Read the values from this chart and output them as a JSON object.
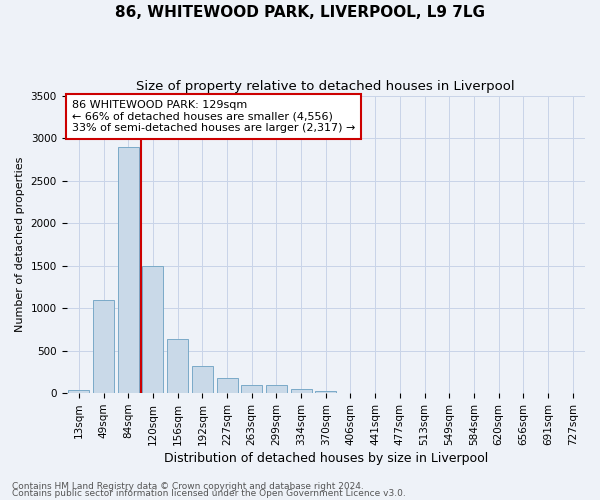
{
  "title": "86, WHITEWOOD PARK, LIVERPOOL, L9 7LG",
  "subtitle": "Size of property relative to detached houses in Liverpool",
  "xlabel": "Distribution of detached houses by size in Liverpool",
  "ylabel": "Number of detached properties",
  "footnote1": "Contains HM Land Registry data © Crown copyright and database right 2024.",
  "footnote2": "Contains public sector information licensed under the Open Government Licence v3.0.",
  "annotation_line1": "86 WHITEWOOD PARK: 129sqm",
  "annotation_line2": "← 66% of detached houses are smaller (4,556)",
  "annotation_line3": "33% of semi-detached houses are larger (2,317) →",
  "bar_color": "#c9d9e8",
  "bar_edge_color": "#7aaac8",
  "vline_color": "#cc0000",
  "categories": [
    "13sqm",
    "49sqm",
    "84sqm",
    "120sqm",
    "156sqm",
    "192sqm",
    "227sqm",
    "263sqm",
    "299sqm",
    "334sqm",
    "370sqm",
    "406sqm",
    "441sqm",
    "477sqm",
    "513sqm",
    "549sqm",
    "584sqm",
    "620sqm",
    "656sqm",
    "691sqm",
    "727sqm"
  ],
  "values": [
    40,
    1100,
    2900,
    1500,
    640,
    320,
    175,
    100,
    100,
    55,
    30,
    5,
    5,
    0,
    0,
    0,
    0,
    0,
    0,
    0,
    0
  ],
  "vline_x": 2.5,
  "ylim": [
    0,
    3500
  ],
  "yticks": [
    0,
    500,
    1000,
    1500,
    2000,
    2500,
    3000,
    3500
  ],
  "grid_color": "#c8d4e8",
  "annotation_box_facecolor": "#ffffff",
  "annotation_box_edgecolor": "#cc0000",
  "title_fontsize": 11,
  "subtitle_fontsize": 9.5,
  "xlabel_fontsize": 9,
  "ylabel_fontsize": 8,
  "tick_fontsize": 7.5,
  "annotation_fontsize": 8,
  "footnote_fontsize": 6.5,
  "background_color": "#eef2f8"
}
